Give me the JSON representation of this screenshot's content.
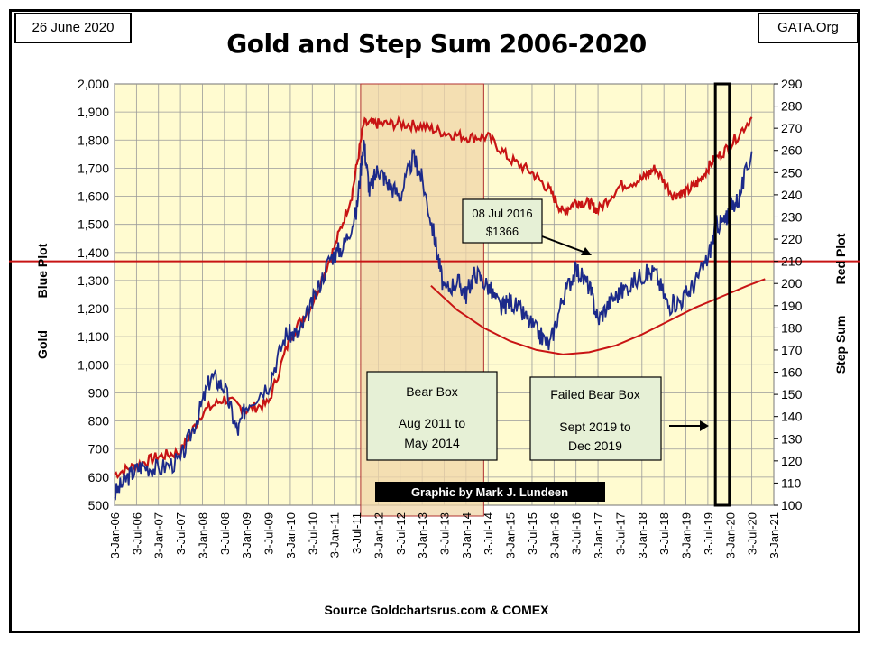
{
  "header": {
    "date": "26 June 2020",
    "site": "GATA.Org",
    "title": "Gold and Step Sum 2006-2020"
  },
  "source": "Source Goldchartsrus.com & COMEX",
  "colors": {
    "plot_bg": "#fffbd0",
    "gold": "#1c2a8a",
    "stepsum": "#c81414",
    "bear_box": "#f0d6a8",
    "annotation_bg": "#e6f0d6"
  },
  "chart_data": {
    "type": "line",
    "title": "Gold and Step Sum 2006-2020",
    "ylabel_left": [
      "Gold",
      "Blue Plot"
    ],
    "ylabel_right": [
      "Step Sum",
      "Red Plot"
    ],
    "xlabel": "",
    "ylim_left": [
      500,
      2000
    ],
    "ylim_right": [
      100,
      290
    ],
    "left_ticks": [
      "500",
      "600",
      "700",
      "800",
      "900",
      "1,000",
      "1,100",
      "1,200",
      "1,300",
      "1,400",
      "1,500",
      "1,600",
      "1,700",
      "1,800",
      "1,900",
      "2,000"
    ],
    "right_ticks": [
      "100",
      "110",
      "120",
      "130",
      "140",
      "150",
      "160",
      "170",
      "180",
      "190",
      "200",
      "210",
      "220",
      "230",
      "240",
      "250",
      "260",
      "270",
      "280",
      "290"
    ],
    "x_ticks": [
      "3-Jan-06",
      "3-Jul-06",
      "3-Jan-07",
      "3-Jul-07",
      "3-Jan-08",
      "3-Jul-08",
      "3-Jan-09",
      "3-Jul-09",
      "3-Jan-10",
      "3-Jul-10",
      "3-Jan-11",
      "3-Jul-11",
      "3-Jan-12",
      "3-Jul-12",
      "3-Jan-13",
      "3-Jul-13",
      "3-Jan-14",
      "3-Jul-14",
      "3-Jan-15",
      "3-Jul-15",
      "3-Jan-16",
      "3-Jul-16",
      "3-Jan-17",
      "3-Jul-17",
      "3-Jan-18",
      "3-Jul-18",
      "3-Jan-19",
      "3-Jul-19",
      "3-Jan-20",
      "3-Jul-20",
      "3-Jan-21"
    ],
    "grid": true,
    "series": [
      {
        "name": "Gold",
        "axis": "left",
        "color": "#1c2a8a",
        "x": [
          2006.0,
          2006.3,
          2006.6,
          2007.0,
          2007.5,
          2007.9,
          2008.2,
          2008.5,
          2008.8,
          2009.0,
          2009.5,
          2009.9,
          2010.2,
          2010.5,
          2010.9,
          2011.2,
          2011.5,
          2011.67,
          2011.8,
          2012.0,
          2012.2,
          2012.5,
          2012.8,
          2013.0,
          2013.3,
          2013.5,
          2013.8,
          2014.0,
          2014.2,
          2014.5,
          2014.8,
          2015.0,
          2015.3,
          2015.6,
          2015.9,
          2016.2,
          2016.5,
          2016.8,
          2017.0,
          2017.3,
          2017.6,
          2018.0,
          2018.3,
          2018.6,
          2018.9,
          2019.2,
          2019.5,
          2019.7,
          2019.9,
          2020.0,
          2020.2,
          2020.5
        ],
        "y": [
          540,
          600,
          640,
          630,
          660,
          820,
          960,
          920,
          760,
          860,
          930,
          1110,
          1110,
          1220,
          1380,
          1420,
          1540,
          1800,
          1620,
          1700,
          1650,
          1600,
          1740,
          1660,
          1440,
          1260,
          1300,
          1250,
          1330,
          1280,
          1200,
          1230,
          1180,
          1120,
          1070,
          1240,
          1340,
          1280,
          1160,
          1230,
          1270,
          1320,
          1330,
          1210,
          1230,
          1290,
          1380,
          1500,
          1510,
          1560,
          1590,
          1760
        ]
      },
      {
        "name": "Step Sum",
        "axis": "right",
        "color": "#c81414",
        "x": [
          2006.0,
          2006.5,
          2007.0,
          2007.5,
          2008.0,
          2008.5,
          2009.0,
          2009.5,
          2010.0,
          2010.5,
          2011.0,
          2011.4,
          2011.67,
          2012.0,
          2012.5,
          2013.0,
          2013.5,
          2014.0,
          2014.5,
          2015.0,
          2015.5,
          2015.9,
          2016.2,
          2016.5,
          2016.8,
          2017.0,
          2017.5,
          2018.0,
          2018.3,
          2018.7,
          2019.0,
          2019.3,
          2019.6,
          2020.0,
          2020.5
        ],
        "y": [
          114,
          118,
          122,
          124,
          142,
          148,
          143,
          146,
          176,
          191,
          216,
          240,
          272,
          272,
          272,
          271,
          268,
          266,
          266,
          256,
          250,
          242,
          232,
          237,
          236,
          233,
          244,
          247,
          252,
          240,
          241,
          246,
          255,
          262,
          275
        ]
      },
      {
        "name": "Trend",
        "axis": "right",
        "color": "#c81414",
        "x": [
          2013.2,
          2013.8,
          2014.4,
          2015.0,
          2015.6,
          2016.2,
          2016.8,
          2017.4,
          2018.0,
          2018.6,
          2019.2,
          2019.8,
          2020.4,
          2020.8
        ],
        "y": [
          199,
          188,
          180,
          174,
          170,
          168,
          169,
          172,
          177,
          183,
          189,
          194,
          199,
          202
        ]
      }
    ],
    "hline_right": 210,
    "bear_box": {
      "x_start": 2011.6,
      "x_end": 2014.4
    },
    "failed_box": {
      "x_start": 2019.67,
      "x_end": 2019.99
    },
    "annotations": {
      "point": [
        "08 Jul 2016",
        "$1366"
      ],
      "bear_box_label": [
        "Bear Box",
        "Aug 2011 to",
        "May 2014"
      ],
      "failed_box_label": [
        "Failed Bear Box",
        "Sept 2019 to",
        "Dec 2019"
      ],
      "credit": "Graphic by Mark J. Lundeen"
    }
  }
}
